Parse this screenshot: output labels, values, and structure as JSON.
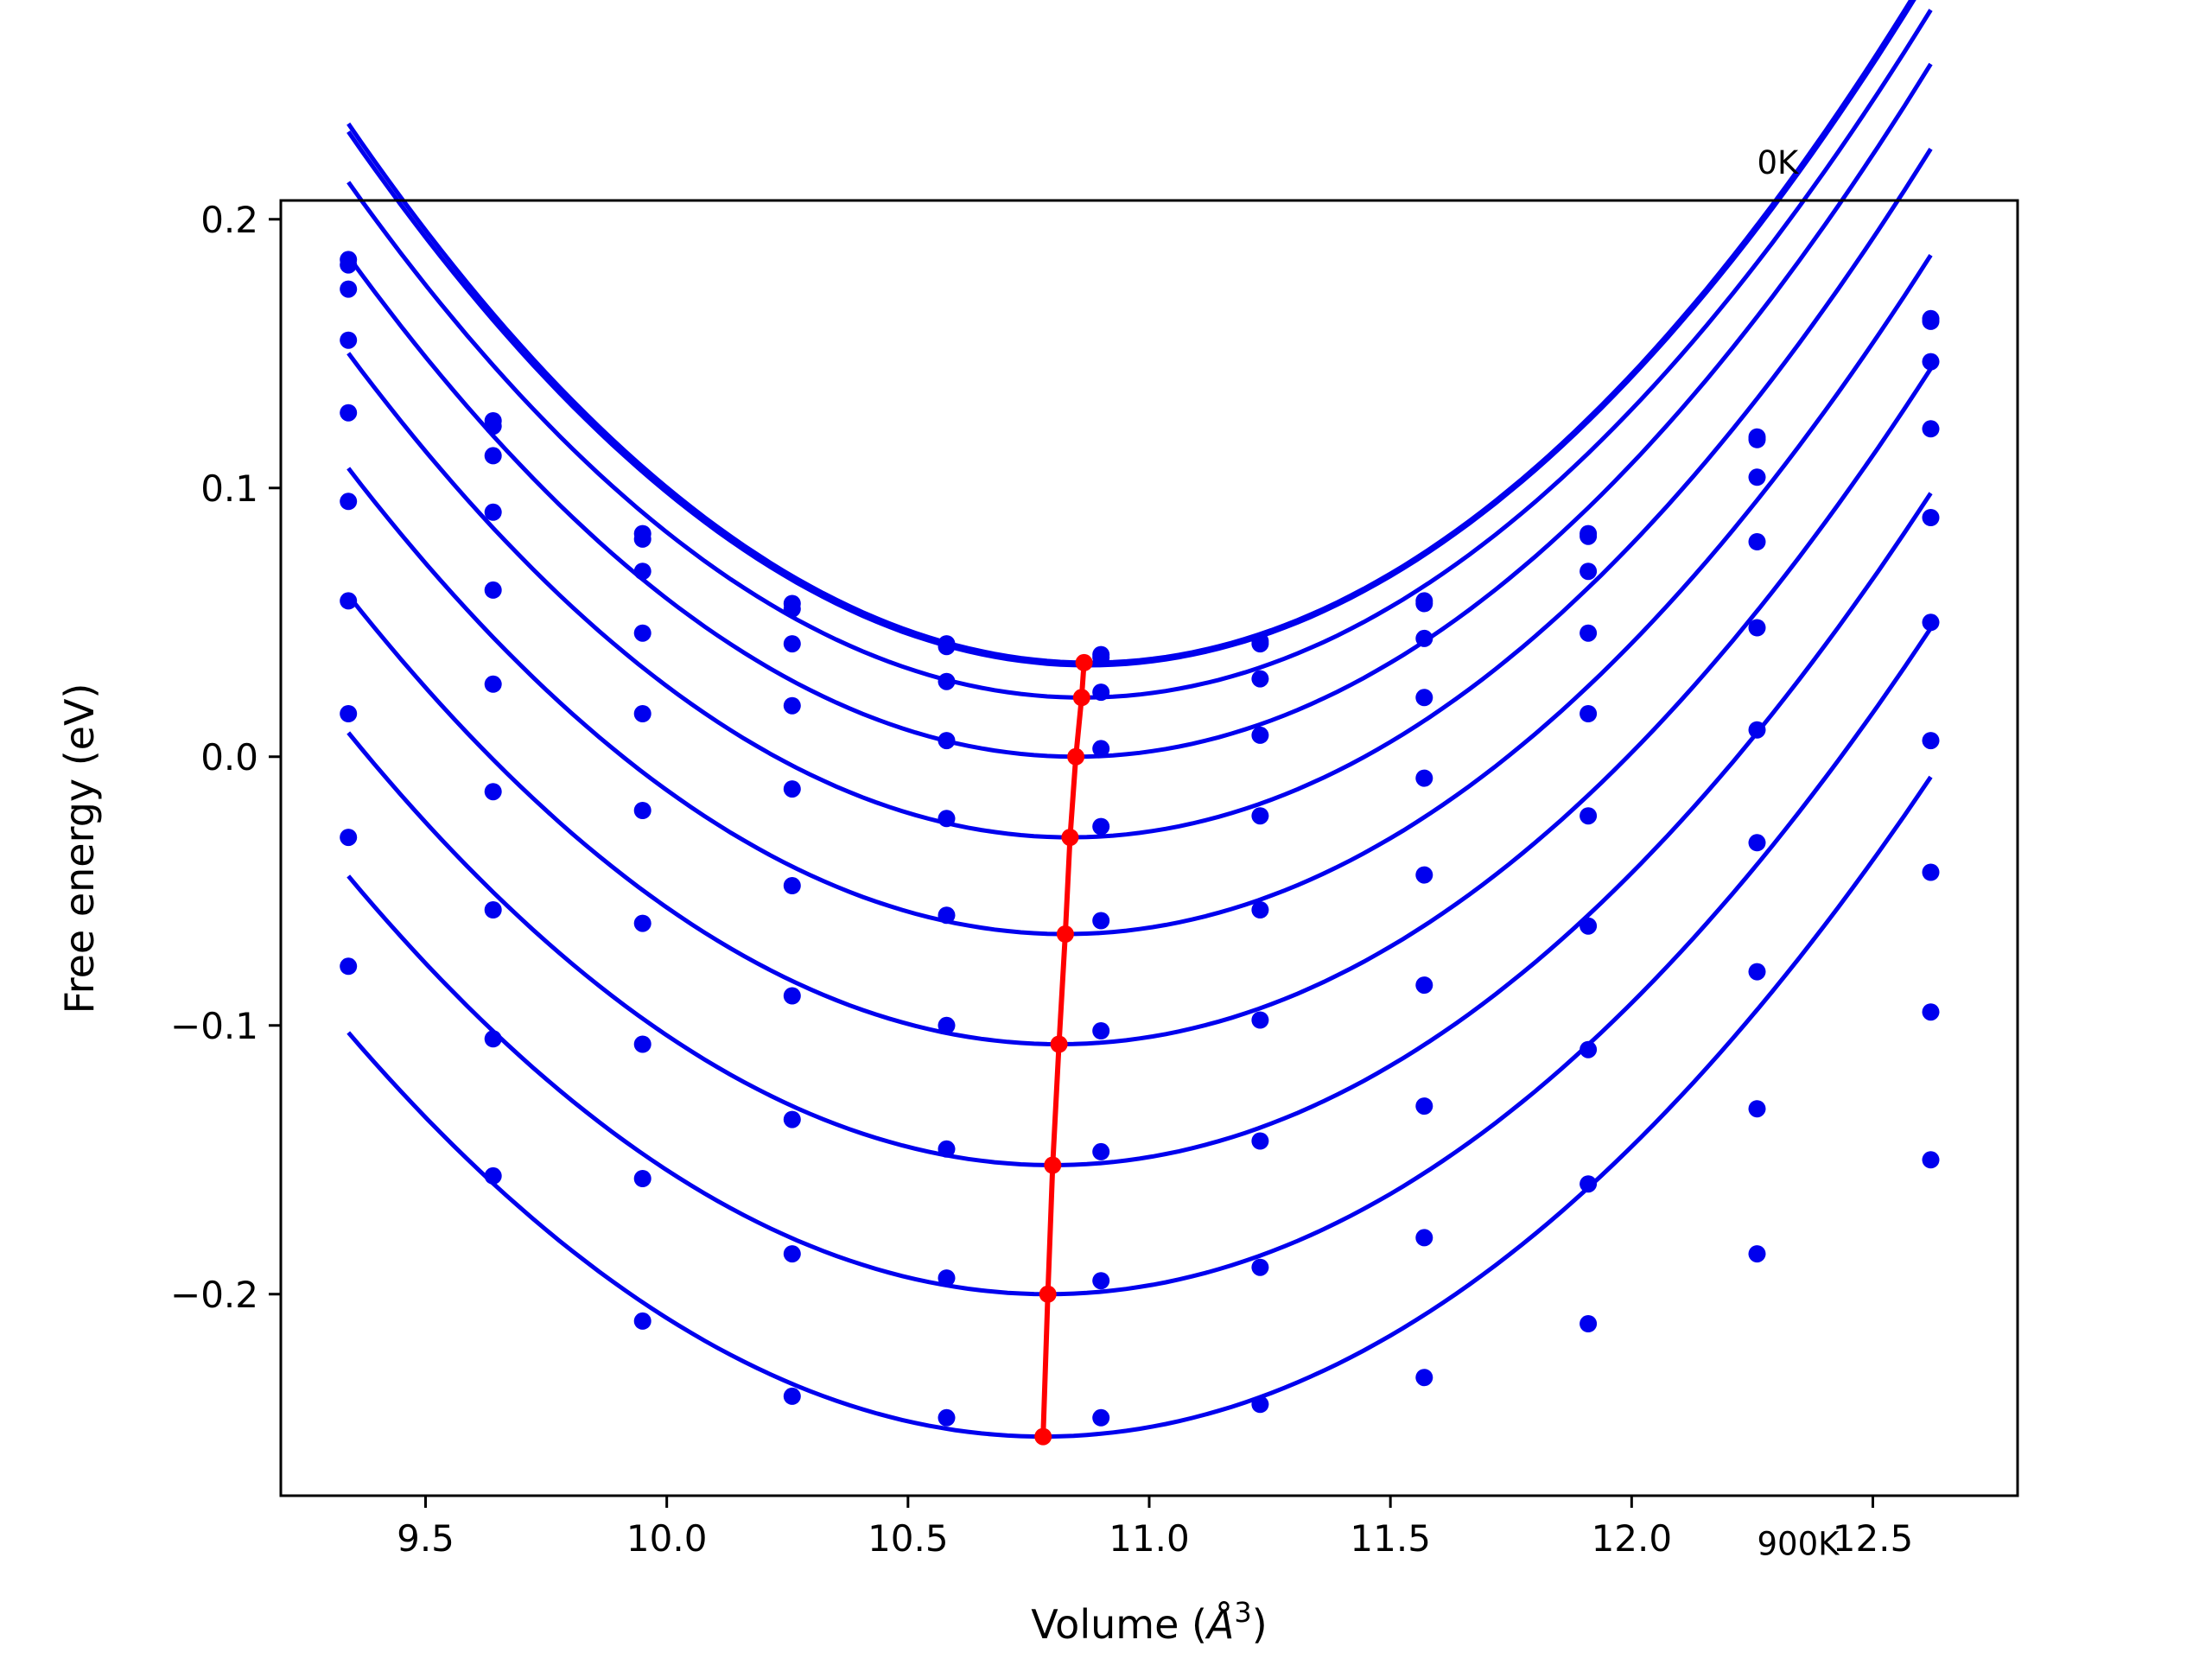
{
  "chart_data": {
    "type": "line",
    "xlabel_prefix": "Volume (",
    "xlabel_unit": "Å",
    "xlabel_sup": "3",
    "xlabel_suffix": ")",
    "ylabel": "Free energy (eV)",
    "xlim": [
      9.2,
      12.8
    ],
    "ylim": [
      -0.275,
      0.207
    ],
    "xticks": [
      9.5,
      10.0,
      10.5,
      11.0,
      11.5,
      12.0,
      12.5
    ],
    "xtick_labels": [
      "9.5",
      "10.0",
      "10.5",
      "11.0",
      "11.5",
      "12.0",
      "12.5"
    ],
    "yticks": [
      0.2,
      0.1,
      0.0,
      -0.1,
      -0.2
    ],
    "ytick_labels": [
      "0.2",
      "0.1",
      "0.0",
      "−0.1",
      "−0.2"
    ],
    "annotations": [
      {
        "text": "0K",
        "x": 12.26,
        "y": 0.217
      },
      {
        "text": "900K",
        "x": 12.26,
        "y": -0.297
      }
    ],
    "grid": false,
    "volumes": [
      9.34,
      9.64,
      9.95,
      10.26,
      10.58,
      10.9,
      11.23,
      11.57,
      11.91,
      12.26,
      12.62
    ],
    "curves": [
      {
        "points": [
          0.185,
          0.125,
          0.083,
          0.057,
          0.042,
          0.038,
          0.043,
          0.058,
          0.083,
          0.119,
          0.163
        ],
        "fit": {
          "a": 0.085,
          "v0": 10.876,
          "fmin": 0.035
        }
      },
      {
        "points": [
          0.183,
          0.123,
          0.081,
          0.055,
          0.041,
          0.037,
          0.042,
          0.057,
          0.082,
          0.118,
          0.162
        ],
        "fit": {
          "a": 0.0845,
          "v0": 10.873,
          "fmin": 0.034
        }
      },
      {
        "points": [
          0.174,
          0.112,
          0.069,
          0.042,
          0.028,
          0.024,
          0.029,
          0.044,
          0.069,
          0.104,
          0.147
        ],
        "fit": {
          "a": 0.0828,
          "v0": 10.862,
          "fmin": 0.022
        }
      },
      {
        "points": [
          0.155,
          0.091,
          0.046,
          0.019,
          0.006,
          0.003,
          0.008,
          0.022,
          0.046,
          0.08,
          0.122
        ],
        "fit": {
          "a": 0.082,
          "v0": 10.847,
          "fmin": 0.0
        }
      },
      {
        "points": [
          0.128,
          0.062,
          0.016,
          -0.012,
          -0.023,
          -0.026,
          -0.022,
          -0.008,
          0.016,
          0.048,
          0.089
        ],
        "fit": {
          "a": 0.0805,
          "v0": 10.836,
          "fmin": -0.03
        }
      },
      {
        "points": [
          0.095,
          0.027,
          -0.02,
          -0.048,
          -0.059,
          -0.061,
          -0.057,
          -0.044,
          -0.022,
          0.01,
          0.05
        ],
        "fit": {
          "a": 0.0785,
          "v0": 10.826,
          "fmin": -0.066
        }
      },
      {
        "points": [
          0.058,
          -0.013,
          -0.062,
          -0.089,
          -0.1,
          -0.102,
          -0.098,
          -0.085,
          -0.063,
          -0.032,
          0.006
        ],
        "fit": {
          "a": 0.077,
          "v0": 10.813,
          "fmin": -0.107
        }
      },
      {
        "points": [
          0.016,
          -0.057,
          -0.107,
          -0.135,
          -0.146,
          -0.147,
          -0.143,
          -0.13,
          -0.109,
          -0.08,
          -0.043
        ],
        "fit": {
          "a": 0.0755,
          "v0": 10.8,
          "fmin": -0.152
        }
      },
      {
        "points": [
          -0.03,
          -0.105,
          -0.157,
          -0.185,
          -0.194,
          -0.195,
          -0.19,
          -0.179,
          -0.159,
          -0.131,
          -0.095
        ],
        "fit": {
          "a": 0.074,
          "v0": 10.79,
          "fmin": -0.2
        }
      },
      {
        "points": [
          -0.078,
          -0.156,
          -0.21,
          -0.238,
          -0.246,
          -0.246,
          -0.241,
          -0.231,
          -0.211,
          -0.185,
          -0.15
        ],
        "fit": {
          "a": 0.0725,
          "v0": 10.78,
          "fmin": -0.253
        }
      }
    ],
    "minima": {
      "x": [
        10.865,
        10.86,
        10.848,
        10.836,
        10.826,
        10.813,
        10.8,
        10.79,
        10.78
      ],
      "y": [
        0.035,
        0.022,
        0.0,
        -0.03,
        -0.066,
        -0.107,
        -0.152,
        -0.2,
        -0.253
      ]
    },
    "colors": {
      "curves": "#0000ee",
      "minima": "#ff0000",
      "axes": "#000000"
    }
  }
}
